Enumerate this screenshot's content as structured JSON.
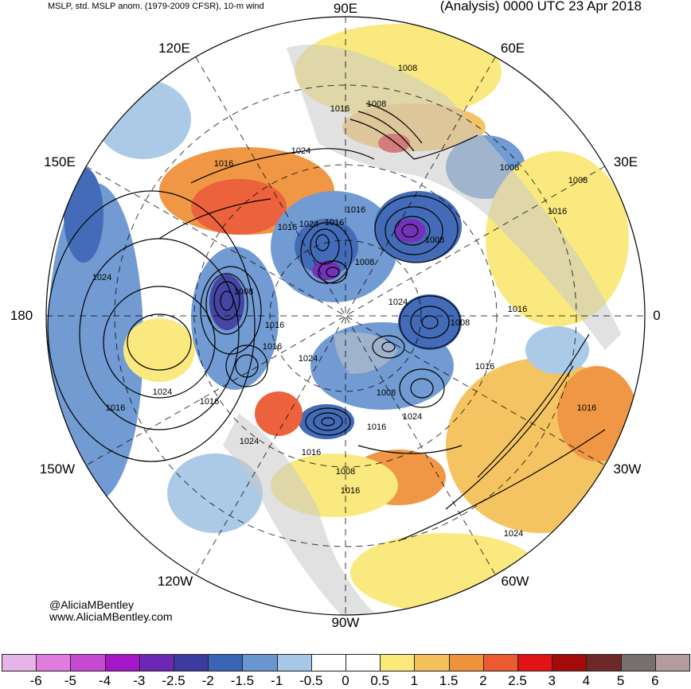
{
  "header": {
    "left_title": "MSLP, std. MSLP anom. (1979-2009 CFSR), 10-m wind",
    "right_title": "(Analysis) 0000 UTC 23 Apr 2018"
  },
  "longitude_labels": {
    "e90": "90E",
    "e60": "60E",
    "e30": "30E",
    "zero": "0",
    "w30": "30W",
    "w60": "60W",
    "w90": "90W",
    "w120": "120W",
    "w150": "150W",
    "d180": "180",
    "e150": "150E",
    "e120": "120E"
  },
  "credits": {
    "handle": "@AliciaMBentley",
    "site": "www.AliciaMBentley.com"
  },
  "pressure_labels": [
    "1008",
    "1016",
    "1008",
    "1024",
    "1016",
    "1016",
    "1024",
    "1016",
    "1008",
    "1008",
    "1008",
    "1016",
    "1008",
    "1008",
    "1024",
    "1016",
    "1016",
    "1008",
    "1024",
    "1016",
    "1008",
    "1024",
    "1016",
    "1024",
    "1016",
    "1016",
    "1024",
    "1016",
    "1008",
    "1016",
    "1016",
    "1016",
    "1024",
    "1016",
    "1024"
  ],
  "colorbar": {
    "labels": [
      "-6",
      "-5",
      "-4",
      "-3",
      "-2.5",
      "-2",
      "-1.5",
      "-1",
      "-0.5",
      "0",
      "0.5",
      "1",
      "1.5",
      "2",
      "2.5",
      "3",
      "4",
      "5",
      "6"
    ],
    "colors": [
      "#e6b4e6",
      "#e07ce0",
      "#c84ad2",
      "#a416c8",
      "#6c28b4",
      "#3c3ca0",
      "#3a64b4",
      "#6a96d0",
      "#a6c8e6",
      "#ffffff",
      "#ffffff",
      "#fae878",
      "#f5c15a",
      "#f0923c",
      "#ec5a32",
      "#e01414",
      "#a40a0a",
      "#6e2828",
      "#787070",
      "#b49c9c"
    ]
  },
  "colors": {
    "ocean": "#ffffff",
    "land": "#c8c8c8",
    "contour": "#000000"
  }
}
